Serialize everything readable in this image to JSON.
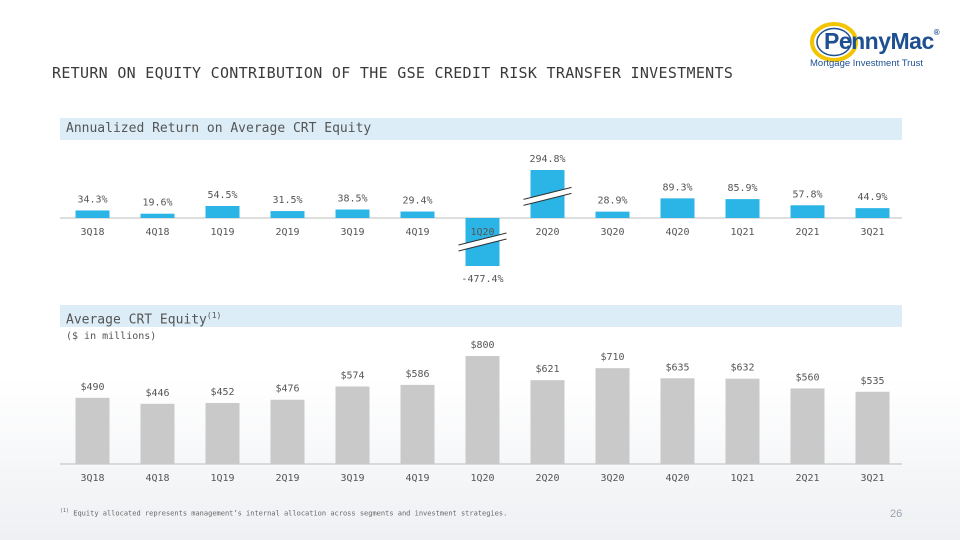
{
  "slide": {
    "title": "RETURN ON EQUITY CONTRIBUTION OF THE GSE CREDIT RISK TRANSFER INVESTMENTS",
    "logo_main": "PennyMac",
    "logo_reg": "®",
    "logo_sub": "Mortgage Investment Trust",
    "footnote_mark": "(1)",
    "footnote_text": "Equity allocated represents management’s internal allocation across segments and investment strategies.",
    "page_number": "26",
    "colors": {
      "roe_bar": "#2bb5e6",
      "equity_bar": "#c9c9c9",
      "band": "#dcedf7"
    }
  },
  "chart_data": [
    {
      "type": "bar",
      "title": "Annualized Return on Average CRT Equity",
      "categories": [
        "3Q18",
        "4Q18",
        "1Q19",
        "2Q19",
        "3Q19",
        "4Q19",
        "1Q20",
        "2Q20",
        "3Q20",
        "4Q20",
        "1Q21",
        "2Q21",
        "3Q21"
      ],
      "values": [
        34.3,
        19.6,
        54.5,
        31.5,
        38.5,
        29.4,
        -477.4,
        294.8,
        28.9,
        89.3,
        85.9,
        57.8,
        44.9
      ],
      "value_labels": [
        "34.3%",
        "19.6%",
        "54.5%",
        "31.5%",
        "38.5%",
        "29.4%",
        "-477.4%",
        "294.8%",
        "28.9%",
        "89.3%",
        "85.9%",
        "57.8%",
        "44.9%"
      ],
      "broken_bars": [
        "1Q20",
        "2Q20"
      ],
      "unit": "%"
    },
    {
      "type": "bar",
      "title": "Average CRT Equity",
      "title_sup": "(1)",
      "subtitle": "($ in millions)",
      "categories": [
        "3Q18",
        "4Q18",
        "1Q19",
        "2Q19",
        "3Q19",
        "4Q19",
        "1Q20",
        "2Q20",
        "3Q20",
        "4Q20",
        "1Q21",
        "2Q21",
        "3Q21"
      ],
      "values": [
        490,
        446,
        452,
        476,
        574,
        586,
        800,
        621,
        710,
        635,
        632,
        560,
        535
      ],
      "value_labels": [
        "$490",
        "$446",
        "$452",
        "$476",
        "$574",
        "$586",
        "$800",
        "$621",
        "$710",
        "$635",
        "$632",
        "$560",
        "$535"
      ],
      "unit": "$M"
    }
  ]
}
